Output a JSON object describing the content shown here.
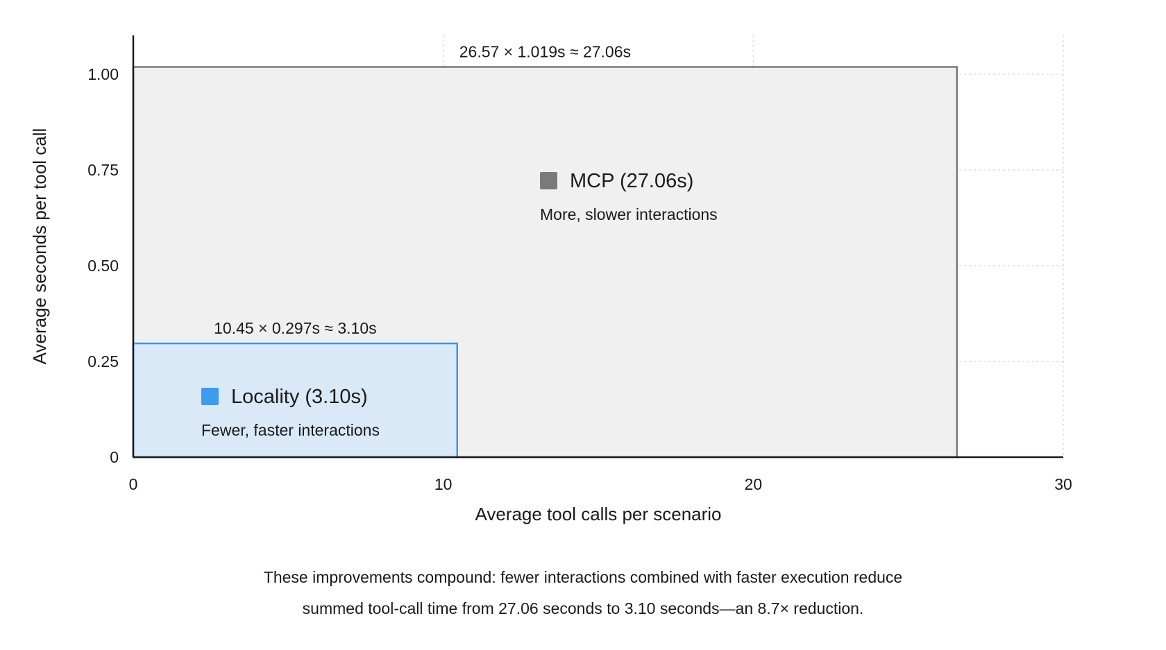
{
  "chart_data": {
    "type": "area",
    "xlabel": "Average tool calls per scenario",
    "ylabel": "Average seconds per tool call",
    "xlim": [
      0,
      30
    ],
    "ylim": [
      0,
      1.08
    ],
    "x_ticks": [
      {
        "value": 0,
        "label": "0"
      },
      {
        "value": 10,
        "label": "10"
      },
      {
        "value": 20,
        "label": "20"
      },
      {
        "value": 30,
        "label": "30"
      }
    ],
    "y_ticks": [
      {
        "value": 0,
        "label": "0"
      },
      {
        "value": 0.25,
        "label": "0.25"
      },
      {
        "value": 0.5,
        "label": "0.50"
      },
      {
        "value": 0.75,
        "label": "0.75"
      },
      {
        "value": 1.0,
        "label": "1.00"
      }
    ],
    "grid": true,
    "series": [
      {
        "name": "MCP (27.06s)",
        "subtitle": "More, slower interactions",
        "calls": 26.57,
        "seconds_per_call": 1.019,
        "total": 27.06,
        "formula_label": "26.57 × 1.019s ≈ 27.06s",
        "fill": "#f0f0f0",
        "stroke": "#7a7a7a",
        "swatch": "#7a7a7a"
      },
      {
        "name": "Locality (3.10s)",
        "subtitle": "Fewer, faster interactions",
        "calls": 10.45,
        "seconds_per_call": 0.297,
        "total": 3.1,
        "formula_label": "10.45 × 0.297s ≈ 3.10s",
        "fill": "#d9e9f7",
        "stroke": "#3e97e2",
        "swatch": "#3d9bf0"
      }
    ]
  },
  "caption": {
    "line1": "These improvements compound: fewer interactions combined with faster execution reduce",
    "line2": "summed tool-call time from 27.06 seconds to 3.10 seconds—an 8.7× reduction."
  }
}
